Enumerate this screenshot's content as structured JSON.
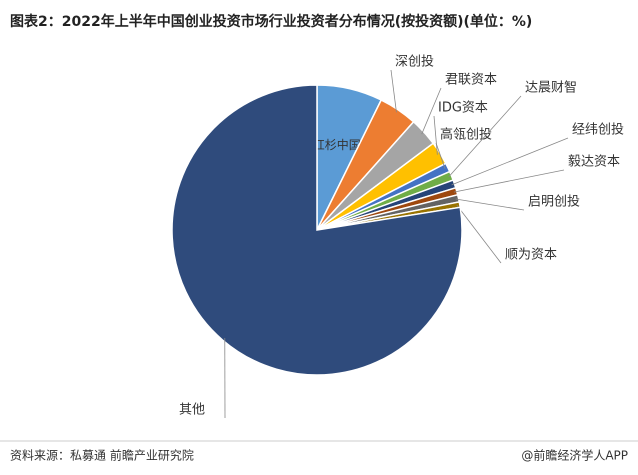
{
  "chart_data": {
    "type": "pie",
    "title": "图表2：2022年上半年中国创业投资市场行业投资者分布情况(按投资额)(单位：%)",
    "categories": [
      "红杉中国",
      "深创投",
      "君联资本",
      "IDG资本",
      "高瓴创投",
      "达晨财智",
      "经纬创投",
      "毅达资本",
      "启明创投",
      "顺为资本",
      "其他"
    ],
    "values": [
      7.3,
      4.3,
      3.2,
      2.6,
      1.0,
      1.0,
      0.9,
      0.8,
      0.8,
      0.6,
      77.5
    ],
    "colors": [
      "#5b9bd5",
      "#ed7d31",
      "#a5a5a5",
      "#ffc000",
      "#4472c4",
      "#70ad47",
      "#264478",
      "#9e480e",
      "#636363",
      "#997300",
      "#2f4b7c"
    ],
    "source": "资料来源：私募通 前瞻产业研究院",
    "credit": "@前瞻经济学人APP"
  }
}
